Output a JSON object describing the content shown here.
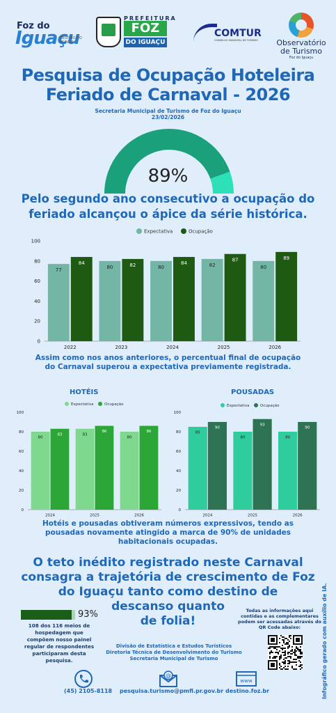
{
  "logos": {
    "foz_line1": "Foz do",
    "foz_line2": "Iguaçu",
    "foz_tag": "DESTINO DO MUNDO",
    "prefeitura": "PREFEITURA",
    "pref_foz": "FOZ",
    "pref_do": "DO IGUAÇU",
    "comtur": "COMTUR",
    "comtur_sub": "CONSELHO MUNICIPAL DE TURISMO",
    "obs_title": "Observatório de Turismo",
    "obs_sub": "Foz do Iguaçu"
  },
  "header": {
    "title_line1": "Pesquisa de Ocupação Hoteleira",
    "title_line2": "Feriado de Carnaval - 2026",
    "subtitle": "Secretaria Municipal de Turismo de Foz do Iguaçu",
    "date": "23/02/2026"
  },
  "gauge": {
    "value": 89,
    "label": "89%",
    "color_fill": "#1aa07a",
    "color_rest": "#2de0b8"
  },
  "headline": {
    "line1": "Pelo segundo ano consecutivo a ocupação do",
    "line2": "feriado alcançou o ápice da série histórica."
  },
  "paragraph1": {
    "line1": "Assim como nos anos anteriores, o percentual final de ocupação",
    "line2": "do Carnaval superou a expectativa previamente registrada."
  },
  "sections": {
    "hoteis": "HOTÉIS",
    "pousadas": "POUSADAS"
  },
  "paragraph2": {
    "line1": "Hotéis e pousadas obtiveram números expressivos, tendo as",
    "line2": "pousadas novamente atingido a marca de 90% de unidades",
    "line3": "habitacionais ocupadas."
  },
  "big_text": {
    "line1": "O teto inédito registrado neste Carnaval",
    "line2": "consagra a trajetória de crescimento de Foz",
    "line3": "do Iguaçu tanto como destino de",
    "line4": "descanso quanto",
    "line5": "de folia!"
  },
  "progress": {
    "value": 0.93,
    "label": "93%",
    "note_bold1": "108",
    "note_mid": " dos ",
    "note_bold2": "116",
    "note_rest": " meios de hospedagem que compõem nosso painel regular de respondentes participaram desta pesquisa."
  },
  "qr_text": "Todas as informações aqui contidas e as complementares podem ser acessadas através do QR Code abaixo:",
  "division": {
    "line1": "Divisão de Estatística e Estudos Turísticos",
    "line2": "Diretoria Técnica de Desenvolvimento do Turismo",
    "line3": "Secretaria Municipal de Turismo"
  },
  "contacts": {
    "phone": "(45) 2105-8118",
    "email": "pesquisa.turismo@pmfi.pr.gov.br",
    "site": "destino.foz.br",
    "www": "www"
  },
  "side_note": "Infográfico gerado com auxílio de IA.",
  "chart_data": [
    {
      "type": "bar",
      "categories": [
        "2022",
        "2023",
        "2024",
        "2025",
        "2026"
      ],
      "series": [
        {
          "name": "Expectativa",
          "values": [
            77,
            80,
            80,
            82,
            80
          ],
          "color": "#74b6a6"
        },
        {
          "name": "Ocupação",
          "values": [
            84,
            82,
            84,
            87,
            89
          ],
          "color": "#1e5a12"
        }
      ],
      "ylim": [
        0,
        100
      ],
      "yticks": [
        0,
        20,
        40,
        60,
        80,
        100
      ],
      "legend": "top-center",
      "grid": false
    },
    {
      "type": "bar",
      "title": "HOTÉIS",
      "categories": [
        "2024",
        "2025",
        "2026"
      ],
      "series": [
        {
          "name": "Expectativa",
          "values": [
            80,
            83,
            80
          ],
          "color": "#7ed98e"
        },
        {
          "name": "Ocupação",
          "values": [
            83,
            86,
            86
          ],
          "color": "#2ca637"
        }
      ],
      "ylim": [
        0,
        100
      ],
      "yticks": [
        0,
        20,
        40,
        60,
        80,
        100
      ],
      "legend": "top-left",
      "grid": false
    },
    {
      "type": "bar",
      "title": "POUSADAS",
      "categories": [
        "2024",
        "2025",
        "2026"
      ],
      "series": [
        {
          "name": "Expectativa",
          "values": [
            85,
            80,
            80
          ],
          "color": "#2fcc9e"
        },
        {
          "name": "Ocupação",
          "values": [
            90,
            93,
            90
          ],
          "color": "#2e7354"
        }
      ],
      "ylim": [
        0,
        100
      ],
      "yticks": [
        0,
        20,
        40,
        60,
        80,
        100
      ],
      "legend": "top-left",
      "grid": false
    }
  ]
}
